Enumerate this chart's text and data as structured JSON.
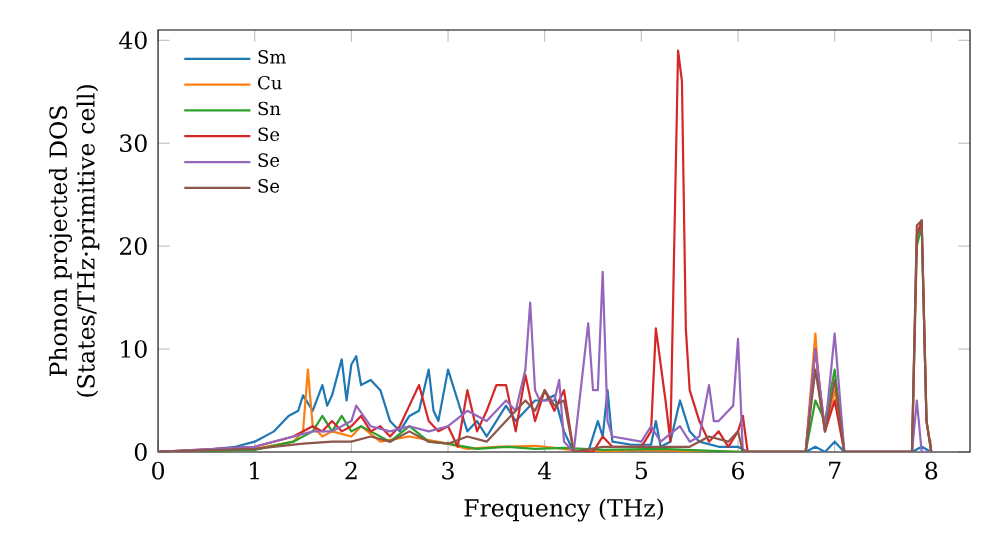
{
  "chart_data": {
    "type": "line",
    "xlabel": "Frequency (THz)",
    "ylabel": "Phonon projected DOS (States/THz·primitive cell)",
    "xlim": [
      0,
      8.4
    ],
    "ylim": [
      0,
      41
    ],
    "xticks": [
      0,
      1,
      2,
      3,
      4,
      5,
      6,
      7,
      8
    ],
    "yticks": [
      0,
      10,
      20,
      30,
      40
    ],
    "legend": "top left",
    "line_style": "solid",
    "marker": "none",
    "series": [
      {
        "name": "Sm",
        "color": "#1f77b4",
        "x": [
          0,
          0.5,
          0.8,
          1.0,
          1.2,
          1.35,
          1.45,
          1.5,
          1.6,
          1.7,
          1.75,
          1.8,
          1.9,
          1.95,
          2.0,
          2.05,
          2.1,
          2.2,
          2.3,
          2.4,
          2.5,
          2.6,
          2.7,
          2.8,
          2.85,
          2.9,
          3.0,
          3.05,
          3.1,
          3.2,
          3.3,
          3.4,
          3.5,
          3.6,
          3.7,
          3.8,
          3.9,
          4.0,
          4.1,
          4.2,
          4.3,
          4.45,
          4.55,
          4.6,
          4.65,
          4.7,
          4.9,
          5.1,
          5.15,
          5.2,
          5.3,
          5.4,
          5.5,
          5.6,
          5.8,
          6.0,
          6.1,
          6.7,
          6.8,
          6.9,
          7.0,
          7.1,
          7.8,
          7.9,
          8.0
        ],
        "values": [
          0,
          0.2,
          0.5,
          1,
          2,
          3.5,
          4,
          5.5,
          4,
          6.5,
          4.5,
          5.5,
          9,
          5,
          8.5,
          9.3,
          6.5,
          7,
          6,
          3,
          2,
          3.5,
          4,
          8,
          4,
          3,
          8,
          6.5,
          5,
          2,
          3,
          1.5,
          3,
          4.5,
          3,
          4,
          5,
          5,
          5.5,
          2,
          0,
          0,
          3,
          1.5,
          6,
          1,
          0.7,
          0.7,
          3,
          0.5,
          1,
          5,
          2,
          1,
          0.5,
          0.5,
          0,
          0,
          0.5,
          0,
          1,
          0,
          0,
          0.5,
          0
        ]
      },
      {
        "name": "Cu",
        "color": "#ff7f0e",
        "x": [
          0,
          1.0,
          1.4,
          1.5,
          1.55,
          1.6,
          1.7,
          1.8,
          2.0,
          2.1,
          2.3,
          2.6,
          3.0,
          3.2,
          3.5,
          3.9,
          4.2,
          4.4,
          5.0,
          6.0,
          6.7,
          6.8,
          6.85,
          6.9,
          7.0,
          7.1
        ],
        "values": [
          0,
          0.3,
          1,
          2,
          8,
          2.5,
          1.5,
          2,
          1.5,
          2.5,
          1,
          1.5,
          0.8,
          0.3,
          0.5,
          0.6,
          0.3,
          0,
          0.2,
          0,
          0,
          11.5,
          5,
          2,
          6,
          0
        ]
      },
      {
        "name": "Sn",
        "color": "#2ca02c",
        "x": [
          0,
          1.0,
          1.4,
          1.6,
          1.7,
          1.8,
          1.9,
          2.0,
          2.1,
          2.2,
          2.4,
          2.6,
          2.8,
          3.0,
          3.3,
          3.6,
          3.9,
          4.2,
          4.6,
          5.2,
          6.0,
          6.7,
          6.8,
          6.9,
          7.0,
          7.1,
          7.8,
          7.85,
          7.9,
          7.95,
          8.0
        ],
        "values": [
          0,
          0.2,
          1,
          2,
          3.5,
          2,
          3.5,
          2,
          2.5,
          2,
          1,
          2.5,
          1,
          0.8,
          0.3,
          0.5,
          0.3,
          0.4,
          0.2,
          0.3,
          0,
          0,
          5,
          3,
          8,
          0,
          0,
          20,
          22,
          3,
          0
        ]
      },
      {
        "name": "Se",
        "color": "#d62728",
        "x": [
          0,
          1.0,
          1.4,
          1.6,
          1.7,
          1.8,
          1.9,
          2.0,
          2.1,
          2.2,
          2.3,
          2.4,
          2.5,
          2.6,
          2.7,
          2.8,
          2.9,
          3.0,
          3.1,
          3.2,
          3.3,
          3.4,
          3.5,
          3.6,
          3.7,
          3.8,
          3.9,
          4.0,
          4.1,
          4.2,
          4.3,
          4.5,
          4.6,
          4.7,
          5.0,
          5.1,
          5.15,
          5.25,
          5.3,
          5.38,
          5.42,
          5.46,
          5.5,
          5.6,
          5.7,
          5.8,
          5.9,
          6.0,
          6.05,
          6.1,
          6.7,
          6.8,
          6.9,
          7.0,
          7.1,
          7.8,
          7.85,
          7.9,
          7.95,
          8.0
        ],
        "values": [
          0,
          0.5,
          1.5,
          2.5,
          2,
          3,
          2,
          2.5,
          3.5,
          2,
          2.5,
          1.5,
          2.5,
          4.5,
          6.5,
          3,
          2,
          2.5,
          0.5,
          6,
          2,
          4,
          6.5,
          6.5,
          2,
          7.5,
          3,
          6,
          4,
          6,
          0,
          0,
          1.5,
          0.5,
          0.5,
          2,
          12,
          5,
          1,
          39,
          36,
          12,
          6,
          3,
          1,
          2,
          0.5,
          2,
          3.5,
          0,
          0,
          10,
          2,
          5,
          0,
          0,
          21,
          22.5,
          3,
          0
        ]
      },
      {
        "name": "Se",
        "color": "#9467bd",
        "x": [
          0,
          1.0,
          1.4,
          1.6,
          1.8,
          2.0,
          2.05,
          2.2,
          2.4,
          2.6,
          2.8,
          3.0,
          3.2,
          3.4,
          3.6,
          3.7,
          3.8,
          3.85,
          3.9,
          3.95,
          4.0,
          4.1,
          4.15,
          4.2,
          4.3,
          4.45,
          4.5,
          4.55,
          4.6,
          4.65,
          4.7,
          5.0,
          5.1,
          5.2,
          5.4,
          5.5,
          5.6,
          5.7,
          5.75,
          5.8,
          5.9,
          5.95,
          6.0,
          6.05,
          6.7,
          6.8,
          6.9,
          7.0,
          7.1,
          7.8,
          7.85,
          7.9,
          8.0
        ],
        "values": [
          0,
          0.5,
          1.5,
          2,
          2,
          3,
          4.5,
          2.5,
          2,
          2.5,
          2,
          2.5,
          4,
          3,
          5,
          4,
          8,
          14.5,
          6,
          5,
          5,
          5,
          7,
          1,
          0,
          12.5,
          6,
          6,
          17.5,
          3,
          1.5,
          1,
          2.5,
          1,
          2.5,
          1,
          1.5,
          6.5,
          3,
          3,
          4,
          4.5,
          11,
          0,
          0,
          10,
          2,
          11.5,
          0,
          0,
          5,
          0,
          0
        ]
      },
      {
        "name": "Se",
        "color": "#8c564b",
        "x": [
          0,
          1.0,
          1.5,
          1.8,
          2.0,
          2.2,
          2.4,
          2.6,
          2.8,
          3.0,
          3.2,
          3.4,
          3.6,
          3.8,
          3.9,
          4.0,
          4.1,
          4.2,
          4.3,
          4.6,
          5.0,
          5.5,
          5.7,
          5.9,
          6.0,
          6.05,
          6.7,
          6.8,
          6.9,
          7.0,
          7.1,
          7.8,
          7.85,
          7.9,
          7.95,
          8.0
        ],
        "values": [
          0,
          0.3,
          0.8,
          1,
          1,
          1.5,
          1,
          2,
          1,
          0.8,
          1.5,
          1,
          3,
          5,
          4,
          6,
          4.5,
          5,
          0,
          0.5,
          0.5,
          0.5,
          1.5,
          1,
          2,
          0,
          0,
          8,
          2,
          7,
          0,
          0,
          22,
          22.5,
          3,
          0
        ]
      }
    ]
  }
}
